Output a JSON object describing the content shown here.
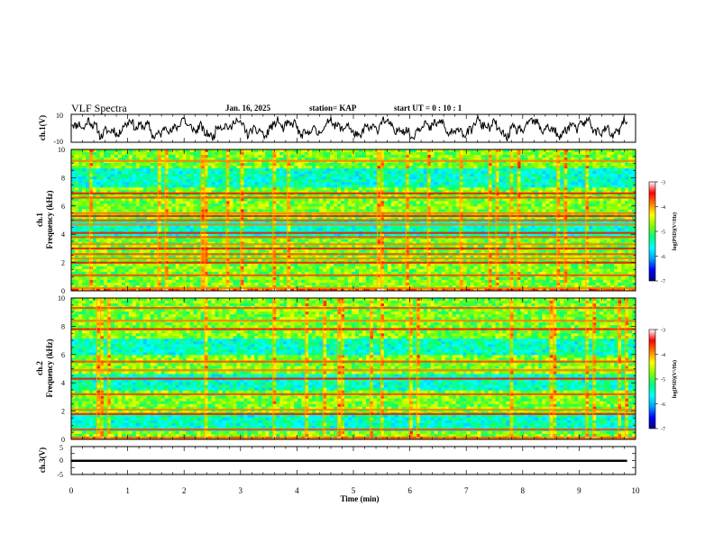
{
  "header": {
    "title": "VLF Spectra",
    "date": "Jan. 16, 2025",
    "station": "station= KAP",
    "start_ut": "start  UT =   0 : 10 : 1"
  },
  "chart_data": [
    {
      "id": "ch1-waveform",
      "type": "line",
      "ylabel": "ch.1(V)",
      "ylim": [
        -10,
        10
      ],
      "yticks": [
        "10",
        "-10"
      ],
      "x_range_min": [
        0,
        9.85
      ],
      "series_seed": 11
    },
    {
      "id": "ch1-spectrogram",
      "type": "heatmap",
      "ylabel_lines": [
        "ch.1",
        "Frequency (kHz)"
      ],
      "ylim": [
        0,
        10
      ],
      "yticks": [
        "0",
        "2",
        "4",
        "6",
        "8",
        "10"
      ],
      "bands_khz": [
        0.2,
        1.1,
        2.0,
        2.3,
        2.6,
        3.0,
        3.3,
        3.8,
        4.1,
        4.7,
        5.0,
        5.3,
        5.5,
        6.6,
        6.9,
        9.2
      ],
      "quiet_zones_khz": [
        [
          3.9,
          5.0
        ],
        [
          7.4,
          8.6
        ]
      ],
      "colorbar": {
        "label": "log(PSD)(V²/Hz)",
        "range": [
          -7,
          -3
        ],
        "ticks": [
          "-3",
          "-4",
          "-5",
          "-6",
          "-7"
        ]
      }
    },
    {
      "id": "ch2-spectrogram",
      "type": "heatmap",
      "ylabel_lines": [
        "ch.2",
        "Frequency (kHz)"
      ],
      "ylim": [
        0,
        10
      ],
      "yticks": [
        "0",
        "2",
        "4",
        "6",
        "8",
        "10"
      ],
      "bands_khz": [
        0.1,
        0.7,
        1.8,
        2.1,
        3.2,
        4.3,
        4.9,
        5.5,
        7.8,
        8.4,
        9.3
      ],
      "quiet_zones_khz": [
        [
          0.6,
          1.8
        ],
        [
          3.5,
          4.7
        ],
        [
          6.0,
          7.2
        ]
      ],
      "colorbar": {
        "label": "log(PSD)(V²/Hz)",
        "range": [
          -7,
          -3
        ],
        "ticks": [
          "-3",
          "-4",
          "-5",
          "-6",
          "-7"
        ]
      }
    },
    {
      "id": "ch3-waveform",
      "type": "line",
      "ylabel": "ch.3(V)",
      "ylim": [
        -5,
        5
      ],
      "yticks": [
        "5",
        "0",
        "-5"
      ],
      "x_range_min": [
        0,
        9.85
      ],
      "level_v": [
        0.3,
        -0.5
      ]
    }
  ],
  "x_axis": {
    "label": "Time  (min)",
    "range": [
      0,
      10
    ],
    "ticks": [
      "0",
      "1",
      "2",
      "3",
      "4",
      "5",
      "6",
      "7",
      "8",
      "9",
      "10"
    ]
  },
  "colors": {
    "trace": "#000000",
    "colormap": [
      "#000080",
      "#0000ff",
      "#00a0ff",
      "#00ffff",
      "#00ff80",
      "#80ff00",
      "#ffff00",
      "#ff8000",
      "#ff0000",
      "#ffffff"
    ]
  }
}
